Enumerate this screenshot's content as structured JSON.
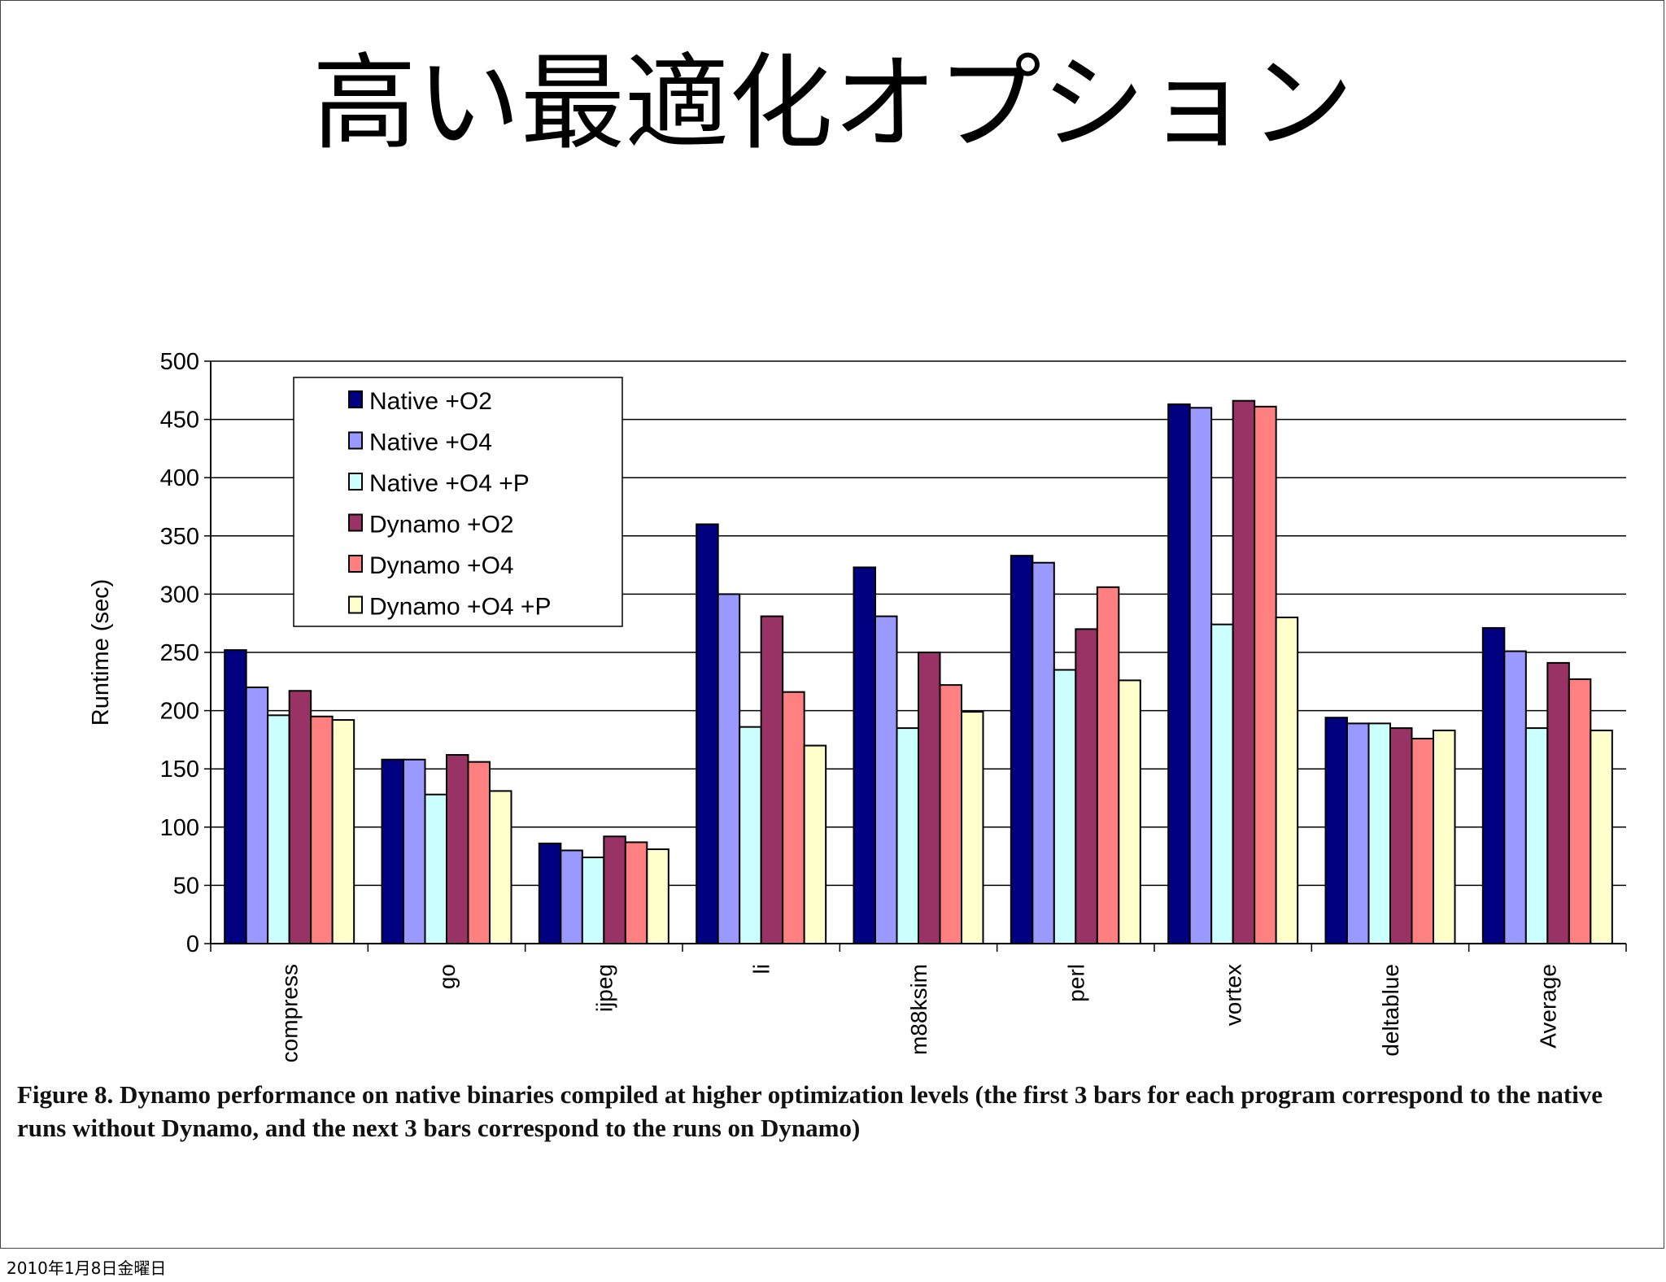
{
  "slide": {
    "title": "高い最適化オプション",
    "caption": "Figure 8. Dynamo performance on native binaries compiled at higher optimization levels (the first 3 bars for each program correspond to the native runs without Dynamo, and the next 3 bars correspond to the runs on Dynamo)",
    "footer_date": "2010年1月8日金曜日"
  },
  "chart_data": {
    "type": "bar",
    "title": "",
    "xlabel": "",
    "ylabel": "Runtime (sec)",
    "ylim": [
      0,
      500
    ],
    "yticks": [
      0,
      50,
      100,
      150,
      200,
      250,
      300,
      350,
      400,
      450,
      500
    ],
    "grid": true,
    "legend_position": "top-left",
    "categories": [
      "compress",
      "go",
      "ijpeg",
      "li",
      "m88ksim",
      "perl",
      "vortex",
      "deltablue",
      "Average"
    ],
    "series": [
      {
        "name": "Native +O2",
        "color": "#000080",
        "values": [
          252,
          158,
          86,
          360,
          323,
          333,
          463,
          194,
          271
        ]
      },
      {
        "name": "Native +O4",
        "color": "#9999ff",
        "values": [
          220,
          158,
          80,
          300,
          281,
          327,
          460,
          189,
          251
        ]
      },
      {
        "name": "Native +O4 +P",
        "color": "#ccffff",
        "values": [
          196,
          128,
          74,
          186,
          185,
          235,
          274,
          189,
          185
        ]
      },
      {
        "name": "Dynamo +O2",
        "color": "#993366",
        "values": [
          217,
          162,
          92,
          281,
          250,
          270,
          466,
          185,
          241
        ]
      },
      {
        "name": "Dynamo +O4",
        "color": "#ff8080",
        "values": [
          195,
          156,
          87,
          216,
          222,
          306,
          461,
          176,
          227
        ]
      },
      {
        "name": "Dynamo +O4 +P",
        "color": "#ffffcc",
        "values": [
          192,
          131,
          81,
          170,
          199,
          226,
          280,
          183,
          183
        ]
      }
    ]
  }
}
